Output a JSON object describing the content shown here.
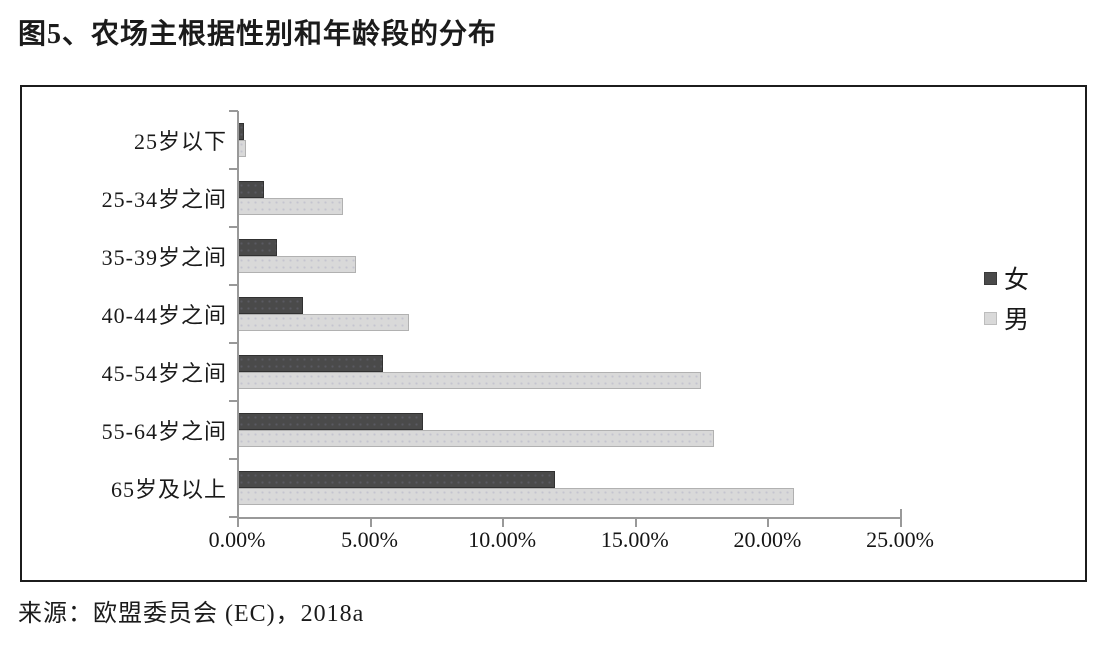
{
  "page": {
    "title": "图5、农场主根据性别和年龄段的分布",
    "source": "来源：欧盟委员会 (EC)，2018a"
  },
  "chart_data": {
    "type": "bar",
    "orientation": "horizontal",
    "title": "图5、农场主根据性别和年龄段的分布",
    "categories": [
      "25岁以下",
      "25-34岁之间",
      "35-39岁之间",
      "40-44岁之间",
      "45-54岁之间",
      "55-64岁之间",
      "65岁及以上"
    ],
    "series": [
      {
        "name": "女",
        "color": "#4a4a4a",
        "values": [
          0.25,
          1.0,
          1.5,
          2.5,
          5.5,
          7.0,
          12.0
        ]
      },
      {
        "name": "男",
        "color": "#d9d9d9",
        "values": [
          0.35,
          4.0,
          4.5,
          6.5,
          17.5,
          18.0,
          21.0
        ]
      }
    ],
    "x_ticks": [
      "0.00%",
      "5.00%",
      "10.00%",
      "15.00%",
      "20.00%",
      "25.00%"
    ],
    "xlim": [
      0,
      25
    ],
    "x_tick_step_pct": 5,
    "unit": "%",
    "legend_position": "right",
    "grid": false,
    "axis_color": "#999999"
  }
}
